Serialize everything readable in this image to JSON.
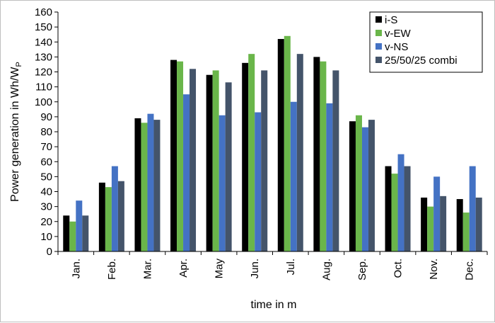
{
  "chart_data": {
    "type": "bar",
    "title": "",
    "xlabel": "time in m",
    "ylabel": {
      "main": "Power generation in Wh/W",
      "subscript": "P"
    },
    "ylim": [
      0,
      160
    ],
    "yticks": [
      0,
      10,
      20,
      30,
      40,
      50,
      60,
      70,
      80,
      90,
      100,
      110,
      120,
      130,
      140,
      150,
      160
    ],
    "grid": false,
    "legend_position": "top-right",
    "categories": [
      "Jan.",
      "Feb.",
      "Mar.",
      "Apr.",
      "May",
      "Jun.",
      "Jul.",
      "Aug.",
      "Sep.",
      "Oct.",
      "Nov.",
      "Dec."
    ],
    "series": [
      {
        "name": "i-S",
        "color": "#000000",
        "values": [
          24,
          46,
          89,
          128,
          118,
          126,
          142,
          130,
          87,
          57,
          36,
          35
        ]
      },
      {
        "name": "v-EW",
        "color": "#6ab64a",
        "values": [
          20,
          43,
          86,
          127,
          121,
          132,
          144,
          127,
          91,
          52,
          30,
          26
        ]
      },
      {
        "name": "v-NS",
        "color": "#4472c4",
        "values": [
          34,
          57,
          92,
          105,
          91,
          93,
          100,
          99,
          83,
          65,
          50,
          57
        ]
      },
      {
        "name": "25/50/25 combi",
        "color": "#44546a",
        "values": [
          24,
          47,
          88,
          122,
          113,
          121,
          132,
          121,
          88,
          57,
          37,
          36
        ]
      }
    ]
  }
}
